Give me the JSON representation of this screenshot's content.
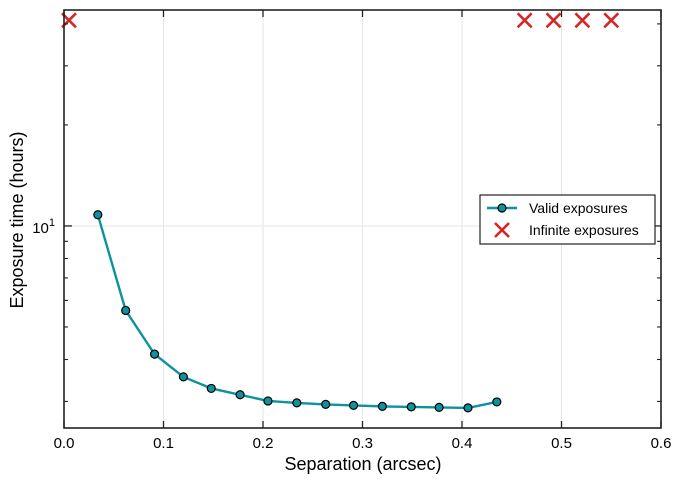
{
  "chart_data": {
    "type": "line",
    "xlabel": "Separation (arcsec)",
    "ylabel": "Exposure time (hours)",
    "xlim": [
      0.0,
      0.6
    ],
    "ylim": [
      2.5,
      44
    ],
    "yscale": "log",
    "grid": true,
    "legend_position": "center-right",
    "x_ticks": [
      0.0,
      0.1,
      0.2,
      0.3,
      0.4,
      0.5,
      0.6
    ],
    "x_tick_labels": [
      "0.0",
      "0.1",
      "0.2",
      "0.3",
      "0.4",
      "0.5",
      "0.6"
    ],
    "y_major_ticks": [
      10
    ],
    "y_minor_ticks": [
      3,
      4,
      5,
      6,
      7,
      8,
      9,
      20,
      30,
      40
    ],
    "y_tick_label": {
      "base": "10",
      "exponent": "1"
    },
    "series": [
      {
        "name": "Valid exposures",
        "style": "line-marker",
        "color": "#0e939e",
        "marker_fill": "#0e939e",
        "marker_edge": "#000000",
        "x": [
          0.034,
          0.062,
          0.091,
          0.12,
          0.148,
          0.177,
          0.205,
          0.234,
          0.263,
          0.291,
          0.32,
          0.349,
          0.377,
          0.406,
          0.435
        ],
        "y": [
          10.8,
          5.6,
          4.15,
          3.55,
          3.28,
          3.14,
          3.01,
          2.97,
          2.94,
          2.92,
          2.9,
          2.89,
          2.88,
          2.87,
          2.99
        ]
      },
      {
        "name": "Infinite exposures",
        "style": "x-marker",
        "color": "#d62728",
        "x": [
          0.005,
          0.463,
          0.492,
          0.521,
          0.55
        ],
        "y": [
          41.0,
          41.0,
          41.0,
          41.0,
          41.0
        ]
      }
    ]
  }
}
